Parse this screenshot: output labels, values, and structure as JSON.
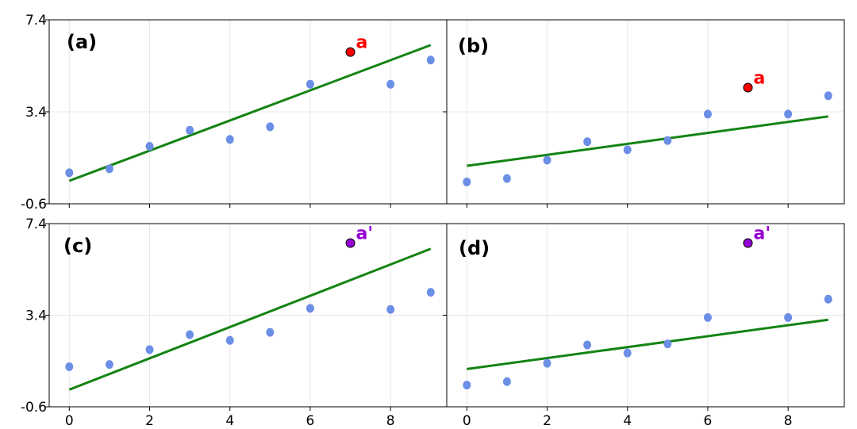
{
  "colors": {
    "points": "#6b8ee6",
    "fit_line": "#138313",
    "outlier_a": "#ff0000",
    "outlier_a_prime": "#9400d3",
    "grid": "#e8e8e8",
    "axes": "#000000"
  },
  "chart_data": [
    {
      "type": "scatter",
      "panel_label": "(a)",
      "x": [
        0,
        1,
        2,
        3,
        4,
        5,
        6,
        8,
        9
      ],
      "y": [
        0.75,
        0.92,
        1.9,
        2.6,
        2.2,
        2.75,
        4.6,
        4.6,
        5.65
      ],
      "outlier": {
        "x": 7,
        "y": 6.0,
        "label": "a"
      },
      "fit_line": {
        "x": [
          0,
          9
        ],
        "y": [
          0.4,
          6.3
        ]
      },
      "xlim": [
        -0.5,
        9.4
      ],
      "ylim": [
        -0.6,
        7.4
      ],
      "yticks": [
        "7.4",
        "3.4",
        "-0.6"
      ],
      "xticks": [
        "0",
        "2",
        "4",
        "6",
        "8"
      ],
      "grid": true
    },
    {
      "type": "scatter",
      "panel_label": "(b)",
      "x": [
        0,
        1,
        2,
        3,
        4,
        5,
        6,
        8,
        9
      ],
      "y": [
        0.35,
        0.5,
        1.3,
        2.1,
        1.75,
        2.15,
        3.3,
        3.3,
        4.1
      ],
      "outlier": {
        "x": 7,
        "y": 4.45,
        "label": "a"
      },
      "fit_line": {
        "x": [
          0,
          9
        ],
        "y": [
          1.05,
          3.2
        ]
      },
      "xlim": [
        -0.5,
        9.4
      ],
      "ylim": [
        -0.6,
        7.4
      ],
      "xticks": [
        "0",
        "2",
        "4",
        "6",
        "8"
      ],
      "grid": true
    },
    {
      "type": "scatter",
      "panel_label": "(c)",
      "x": [
        0,
        1,
        2,
        3,
        4,
        5,
        6,
        8,
        9
      ],
      "y": [
        1.15,
        1.25,
        1.9,
        2.55,
        2.3,
        2.65,
        3.7,
        3.65,
        4.4
      ],
      "outlier": {
        "x": 7,
        "y": 6.55,
        "label": "a'"
      },
      "fit_line": {
        "x": [
          0,
          9
        ],
        "y": [
          0.15,
          6.3
        ]
      },
      "xlim": [
        -0.5,
        9.4
      ],
      "ylim": [
        -0.6,
        7.4
      ],
      "yticks": [
        "7.4",
        "3.4",
        "-0.6"
      ],
      "xticks": [
        "0",
        "2",
        "4",
        "6",
        "8"
      ],
      "grid": true
    },
    {
      "type": "scatter",
      "panel_label": "(d)",
      "x": [
        0,
        1,
        2,
        3,
        4,
        5,
        6,
        8,
        9
      ],
      "y": [
        0.35,
        0.5,
        1.3,
        2.1,
        1.75,
        2.15,
        3.3,
        3.3,
        4.1
      ],
      "outlier": {
        "x": 7,
        "y": 6.55,
        "label": "a'"
      },
      "fit_line": {
        "x": [
          0,
          9
        ],
        "y": [
          1.05,
          3.2
        ]
      },
      "xlim": [
        -0.5,
        9.4
      ],
      "ylim": [
        -0.6,
        7.4
      ],
      "xticks": [
        "0",
        "2",
        "4",
        "6",
        "8"
      ],
      "grid": true
    }
  ]
}
